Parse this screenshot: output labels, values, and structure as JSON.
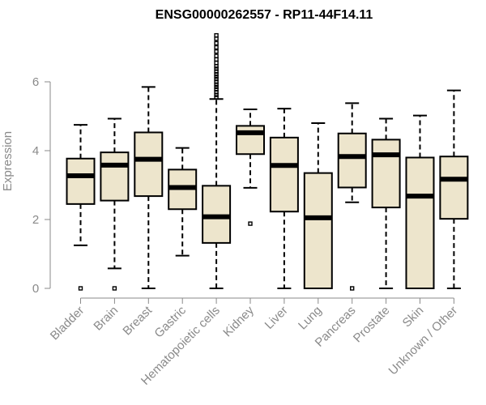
{
  "chart_data": {
    "type": "boxplot",
    "title": "ENSG00000262557 - RP11-44F14.11",
    "xlabel": "",
    "ylabel": "Expression",
    "ylim": [
      0,
      7.5
    ],
    "yticks": [
      0,
      2,
      4,
      6
    ],
    "colors": {
      "box_fill": "#ede5cc",
      "axis": "#8a8a8a",
      "line": "#000000"
    },
    "categories": [
      "Bladder",
      "Brain",
      "Breast",
      "Gastric",
      "Hematopoietic cells",
      "Kidney",
      "Liver",
      "Lung",
      "Pancreas",
      "Prostate",
      "Skin",
      "Unknown / Other"
    ],
    "boxes": [
      {
        "name": "Bladder",
        "whisker_low": 1.25,
        "q1": 2.45,
        "median": 3.27,
        "q3": 3.77,
        "whisker_high": 4.75,
        "outliers": [
          0.0
        ]
      },
      {
        "name": "Brain",
        "whisker_low": 0.58,
        "q1": 2.55,
        "median": 3.58,
        "q3": 3.95,
        "whisker_high": 4.93,
        "outliers": [
          0.0
        ]
      },
      {
        "name": "Breast",
        "whisker_low": 0.0,
        "q1": 2.68,
        "median": 3.75,
        "q3": 4.53,
        "whisker_high": 5.85,
        "outliers": []
      },
      {
        "name": "Gastric",
        "whisker_low": 0.95,
        "q1": 2.3,
        "median": 2.93,
        "q3": 3.45,
        "whisker_high": 4.08,
        "outliers": []
      },
      {
        "name": "Hematopoietic cells",
        "whisker_low": 0.0,
        "q1": 1.32,
        "median": 2.08,
        "q3": 2.98,
        "whisker_high": 5.5,
        "outliers": [
          5.55,
          5.62,
          5.7,
          5.78,
          5.85,
          5.92,
          6.0,
          6.08,
          6.15,
          6.22,
          6.3,
          6.38,
          6.45,
          6.55,
          6.65,
          6.75,
          6.88,
          7.0,
          7.12,
          7.25,
          7.35
        ]
      },
      {
        "name": "Kidney",
        "whisker_low": 2.92,
        "q1": 3.9,
        "median": 4.52,
        "q3": 4.72,
        "whisker_high": 5.2,
        "outliers": [
          1.88
        ]
      },
      {
        "name": "Liver",
        "whisker_low": 0.0,
        "q1": 2.23,
        "median": 3.57,
        "q3": 4.38,
        "whisker_high": 5.22,
        "outliers": []
      },
      {
        "name": "Lung",
        "whisker_low": 0.0,
        "q1": 0.0,
        "median": 2.05,
        "q3": 3.35,
        "whisker_high": 4.8,
        "outliers": []
      },
      {
        "name": "Pancreas",
        "whisker_low": 2.5,
        "q1": 2.93,
        "median": 3.83,
        "q3": 4.5,
        "whisker_high": 5.38,
        "outliers": [
          0.0
        ]
      },
      {
        "name": "Prostate",
        "whisker_low": 0.0,
        "q1": 2.35,
        "median": 3.88,
        "q3": 4.32,
        "whisker_high": 4.93,
        "outliers": []
      },
      {
        "name": "Skin",
        "whisker_low": 0.0,
        "q1": 0.0,
        "median": 2.68,
        "q3": 3.8,
        "whisker_high": 5.02,
        "outliers": []
      },
      {
        "name": "Unknown / Other",
        "whisker_low": 0.0,
        "q1": 2.02,
        "median": 3.17,
        "q3": 3.83,
        "whisker_high": 5.75,
        "outliers": []
      }
    ]
  }
}
